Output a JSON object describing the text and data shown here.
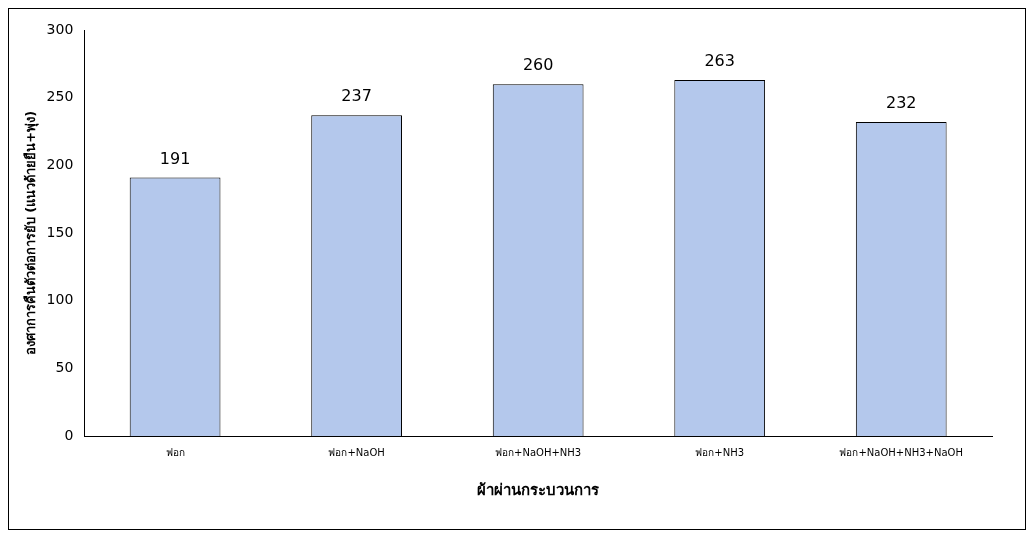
{
  "chart_data": {
    "type": "bar",
    "xlabel": "ผ้าผ่านกระบวนการ",
    "ylabel": "องศาการคืนตัวต่อการยับ (แนวด้ายยืน+พุ่ง)",
    "categories": [
      "ฟอก",
      "ฟอก+NaOH",
      "ฟอก+NaOH+NH3",
      "ฟอก+NH3",
      "ฟอก+NaOH+NH3+NaOH"
    ],
    "values": [
      191,
      237,
      260,
      263,
      232
    ],
    "color": "#b4c8ec",
    "ylim": [
      0,
      300
    ],
    "yticks": [
      0,
      50,
      100,
      150,
      200,
      250,
      300
    ],
    "grid": false,
    "legend": false,
    "data_labels": true
  }
}
